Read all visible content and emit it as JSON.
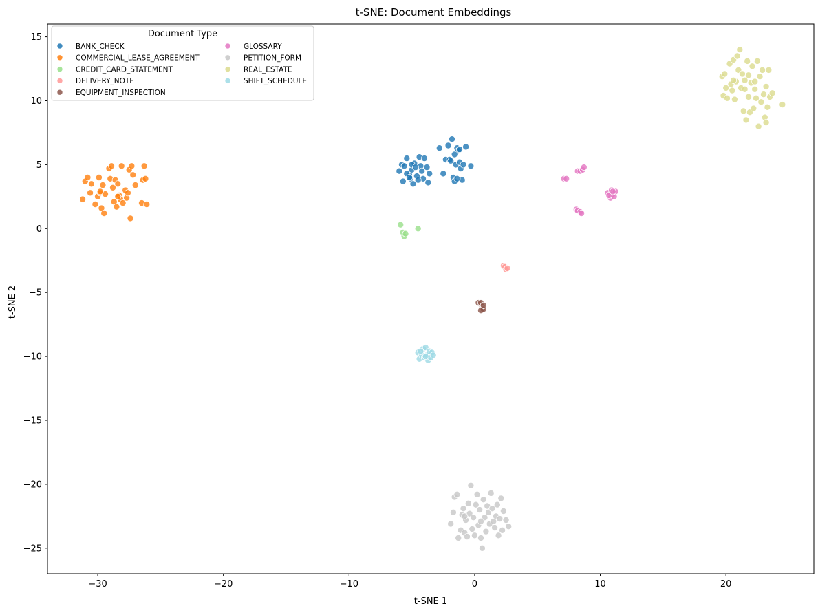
{
  "chart_data": {
    "type": "scatter",
    "title": "t-SNE: Document Embeddings",
    "xlabel": "t-SNE 1",
    "ylabel": "t-SNE 2",
    "xlim": [
      -34,
      27
    ],
    "ylim": [
      -27,
      16
    ],
    "xticks": [
      -30,
      -20,
      -10,
      0,
      10,
      20
    ],
    "yticks": [
      -25,
      -20,
      -15,
      -10,
      -5,
      0,
      5,
      10,
      15
    ],
    "grid": false,
    "legend": {
      "title": "Document Type",
      "placement": "top-left",
      "columns": 2
    },
    "series": [
      {
        "name": "BANK_CHECK",
        "color": "#1f77b4",
        "points": [
          [
            -6.0,
            4.5
          ],
          [
            -5.8,
            5.0
          ],
          [
            -5.6,
            4.9
          ],
          [
            -5.4,
            5.5
          ],
          [
            -5.2,
            4.2
          ],
          [
            -5.0,
            4.6
          ],
          [
            -5.1,
            3.9
          ],
          [
            -4.8,
            5.1
          ],
          [
            -4.9,
            3.5
          ],
          [
            -4.6,
            4.1
          ],
          [
            -4.4,
            5.6
          ],
          [
            -4.3,
            4.9
          ],
          [
            -4.2,
            4.5
          ],
          [
            -4.1,
            3.9
          ],
          [
            -4.0,
            5.5
          ],
          [
            -3.8,
            4.8
          ],
          [
            -3.7,
            3.6
          ],
          [
            -3.6,
            4.3
          ],
          [
            -5.7,
            3.7
          ],
          [
            -5.4,
            4.3
          ],
          [
            -5.0,
            5.0
          ],
          [
            -4.7,
            4.8
          ],
          [
            -4.5,
            3.8
          ],
          [
            -5.2,
            4.0
          ],
          [
            -2.8,
            6.3
          ],
          [
            -2.5,
            4.3
          ],
          [
            -2.3,
            5.4
          ],
          [
            -2.1,
            6.5
          ],
          [
            -2.0,
            5.4
          ],
          [
            -1.9,
            5.3
          ],
          [
            -1.8,
            7.0
          ],
          [
            -1.7,
            4.0
          ],
          [
            -1.6,
            3.7
          ],
          [
            -1.5,
            5.0
          ],
          [
            -1.4,
            6.3
          ],
          [
            -1.3,
            6.1
          ],
          [
            -1.2,
            5.2
          ],
          [
            -1.1,
            4.7
          ],
          [
            -1.0,
            3.8
          ],
          [
            -0.9,
            5.0
          ],
          [
            -0.7,
            6.4
          ],
          [
            -0.3,
            4.9
          ],
          [
            -1.2,
            6.2
          ],
          [
            -1.6,
            5.8
          ],
          [
            -1.4,
            3.9
          ]
        ]
      },
      {
        "name": "COMMERCIAL_LEASE_AGREEMENT",
        "color": "#ff7f0e",
        "points": [
          [
            -31.2,
            2.3
          ],
          [
            -31.0,
            3.7
          ],
          [
            -30.8,
            4.0
          ],
          [
            -30.6,
            2.8
          ],
          [
            -30.5,
            3.5
          ],
          [
            -30.2,
            1.9
          ],
          [
            -30.0,
            2.5
          ],
          [
            -29.9,
            4.0
          ],
          [
            -29.8,
            2.8
          ],
          [
            -29.7,
            1.6
          ],
          [
            -29.6,
            3.4
          ],
          [
            -29.5,
            1.2
          ],
          [
            -29.4,
            2.7
          ],
          [
            -29.1,
            4.7
          ],
          [
            -29.0,
            3.9
          ],
          [
            -28.9,
            4.9
          ],
          [
            -28.8,
            3.2
          ],
          [
            -28.7,
            2.1
          ],
          [
            -28.6,
            3.8
          ],
          [
            -28.5,
            1.7
          ],
          [
            -28.4,
            3.5
          ],
          [
            -28.3,
            2.6
          ],
          [
            -28.2,
            2.3
          ],
          [
            -28.1,
            4.9
          ],
          [
            -28.0,
            2.0
          ],
          [
            -27.8,
            3.0
          ],
          [
            -27.7,
            2.4
          ],
          [
            -27.6,
            2.8
          ],
          [
            -27.5,
            4.6
          ],
          [
            -27.4,
            0.8
          ],
          [
            -27.3,
            4.9
          ],
          [
            -27.2,
            4.2
          ],
          [
            -27.0,
            3.4
          ],
          [
            -26.5,
            2.0
          ],
          [
            -26.4,
            3.8
          ],
          [
            -26.3,
            4.9
          ],
          [
            -26.2,
            3.9
          ],
          [
            -26.1,
            1.9
          ],
          [
            -29.8,
            2.9
          ],
          [
            -28.4,
            2.5
          ]
        ]
      },
      {
        "name": "CREDIT_CARD_STATEMENT",
        "color": "#98df8a",
        "points": [
          [
            -5.9,
            0.3
          ],
          [
            -5.7,
            -0.3
          ],
          [
            -5.6,
            -0.6
          ],
          [
            -5.5,
            -0.4
          ],
          [
            -4.5,
            0.0
          ]
        ]
      },
      {
        "name": "DELIVERY_NOTE",
        "color": "#ff9896",
        "points": [
          [
            2.3,
            -2.9
          ],
          [
            2.4,
            -3.0
          ],
          [
            2.5,
            -3.2
          ],
          [
            2.6,
            -3.1
          ]
        ]
      },
      {
        "name": "EQUIPMENT_INSPECTION",
        "color": "#8c564b",
        "points": [
          [
            0.3,
            -5.8
          ],
          [
            0.5,
            -5.8
          ],
          [
            0.6,
            -6.1
          ],
          [
            0.6,
            -6.3
          ],
          [
            0.7,
            -6.3
          ],
          [
            0.5,
            -6.4
          ],
          [
            0.7,
            -6.0
          ]
        ]
      },
      {
        "name": "GLOSSARY",
        "color": "#e377c2",
        "points": [
          [
            7.1,
            3.9
          ],
          [
            7.3,
            3.9
          ],
          [
            8.1,
            1.5
          ],
          [
            8.2,
            1.4
          ],
          [
            8.4,
            1.3
          ],
          [
            8.5,
            1.2
          ],
          [
            8.2,
            4.5
          ],
          [
            8.4,
            4.5
          ],
          [
            8.6,
            4.6
          ],
          [
            8.7,
            4.8
          ],
          [
            10.6,
            2.8
          ],
          [
            10.8,
            2.4
          ],
          [
            10.9,
            3.0
          ],
          [
            11.0,
            2.7
          ],
          [
            11.1,
            2.5
          ],
          [
            11.2,
            2.9
          ],
          [
            10.7,
            2.6
          ],
          [
            11.0,
            2.9
          ]
        ]
      },
      {
        "name": "PETITION_FORM",
        "color": "#c7c7c7",
        "points": [
          [
            -1.9,
            -23.1
          ],
          [
            -1.7,
            -22.2
          ],
          [
            -1.6,
            -21.0
          ],
          [
            -1.4,
            -20.8
          ],
          [
            -1.3,
            -24.2
          ],
          [
            -1.1,
            -23.6
          ],
          [
            -1.0,
            -22.4
          ],
          [
            -0.9,
            -21.9
          ],
          [
            -0.8,
            -23.8
          ],
          [
            -0.7,
            -22.8
          ],
          [
            -0.6,
            -24.1
          ],
          [
            -0.5,
            -21.5
          ],
          [
            -0.4,
            -22.3
          ],
          [
            -0.3,
            -20.1
          ],
          [
            -0.2,
            -23.5
          ],
          [
            -0.1,
            -22.6
          ],
          [
            0.0,
            -24.0
          ],
          [
            0.1,
            -21.6
          ],
          [
            0.2,
            -20.8
          ],
          [
            0.3,
            -23.2
          ],
          [
            0.4,
            -22.0
          ],
          [
            0.5,
            -24.2
          ],
          [
            0.6,
            -25.0
          ],
          [
            0.7,
            -21.2
          ],
          [
            0.8,
            -22.6
          ],
          [
            0.9,
            -23.7
          ],
          [
            1.0,
            -21.7
          ],
          [
            1.1,
            -22.2
          ],
          [
            1.2,
            -23.1
          ],
          [
            1.3,
            -20.7
          ],
          [
            1.4,
            -21.9
          ],
          [
            1.5,
            -22.9
          ],
          [
            1.6,
            -23.4
          ],
          [
            1.7,
            -22.5
          ],
          [
            1.8,
            -21.6
          ],
          [
            1.9,
            -24.0
          ],
          [
            2.0,
            -22.7
          ],
          [
            2.1,
            -21.1
          ],
          [
            2.2,
            -23.6
          ],
          [
            2.3,
            -22.1
          ],
          [
            2.5,
            -22.8
          ],
          [
            2.7,
            -23.3
          ],
          [
            -0.8,
            -22.5
          ],
          [
            0.5,
            -22.9
          ]
        ]
      },
      {
        "name": "REAL_ESTATE",
        "color": "#dbdb8d",
        "points": [
          [
            19.7,
            11.9
          ],
          [
            19.8,
            10.4
          ],
          [
            19.9,
            12.1
          ],
          [
            20.0,
            11.0
          ],
          [
            20.1,
            10.2
          ],
          [
            20.3,
            12.9
          ],
          [
            20.4,
            11.3
          ],
          [
            20.5,
            10.8
          ],
          [
            20.6,
            13.2
          ],
          [
            20.7,
            10.1
          ],
          [
            20.8,
            11.5
          ],
          [
            20.9,
            13.5
          ],
          [
            21.0,
            12.4
          ],
          [
            21.1,
            14.0
          ],
          [
            21.2,
            11.0
          ],
          [
            21.3,
            12.1
          ],
          [
            21.4,
            9.2
          ],
          [
            21.5,
            11.6
          ],
          [
            21.6,
            8.5
          ],
          [
            21.7,
            13.1
          ],
          [
            21.8,
            10.3
          ],
          [
            21.9,
            9.1
          ],
          [
            22.0,
            11.4
          ],
          [
            22.1,
            12.7
          ],
          [
            22.2,
            9.4
          ],
          [
            22.3,
            10.9
          ],
          [
            22.4,
            10.2
          ],
          [
            22.5,
            13.1
          ],
          [
            22.6,
            8.0
          ],
          [
            22.7,
            11.9
          ],
          [
            22.8,
            9.9
          ],
          [
            22.9,
            12.4
          ],
          [
            23.0,
            10.5
          ],
          [
            23.1,
            8.7
          ],
          [
            23.2,
            11.1
          ],
          [
            23.3,
            9.5
          ],
          [
            23.4,
            12.4
          ],
          [
            23.5,
            10.3
          ],
          [
            23.7,
            10.6
          ],
          [
            24.5,
            9.7
          ],
          [
            20.6,
            11.6
          ],
          [
            21.8,
            12.0
          ],
          [
            22.3,
            11.5
          ],
          [
            23.2,
            8.3
          ],
          [
            21.5,
            10.9
          ]
        ]
      },
      {
        "name": "SHIFT_SCHEDULE",
        "color": "#9edae5",
        "points": [
          [
            -4.5,
            -9.7
          ],
          [
            -4.4,
            -10.2
          ],
          [
            -4.2,
            -9.9
          ],
          [
            -4.1,
            -9.4
          ],
          [
            -4.0,
            -10.1
          ],
          [
            -3.9,
            -9.3
          ],
          [
            -3.8,
            -9.9
          ],
          [
            -3.7,
            -10.3
          ],
          [
            -3.6,
            -9.6
          ],
          [
            -3.5,
            -10.1
          ],
          [
            -3.4,
            -9.7
          ],
          [
            -3.3,
            -9.9
          ],
          [
            -4.3,
            -9.6
          ],
          [
            -3.9,
            -10.0
          ]
        ]
      }
    ]
  }
}
